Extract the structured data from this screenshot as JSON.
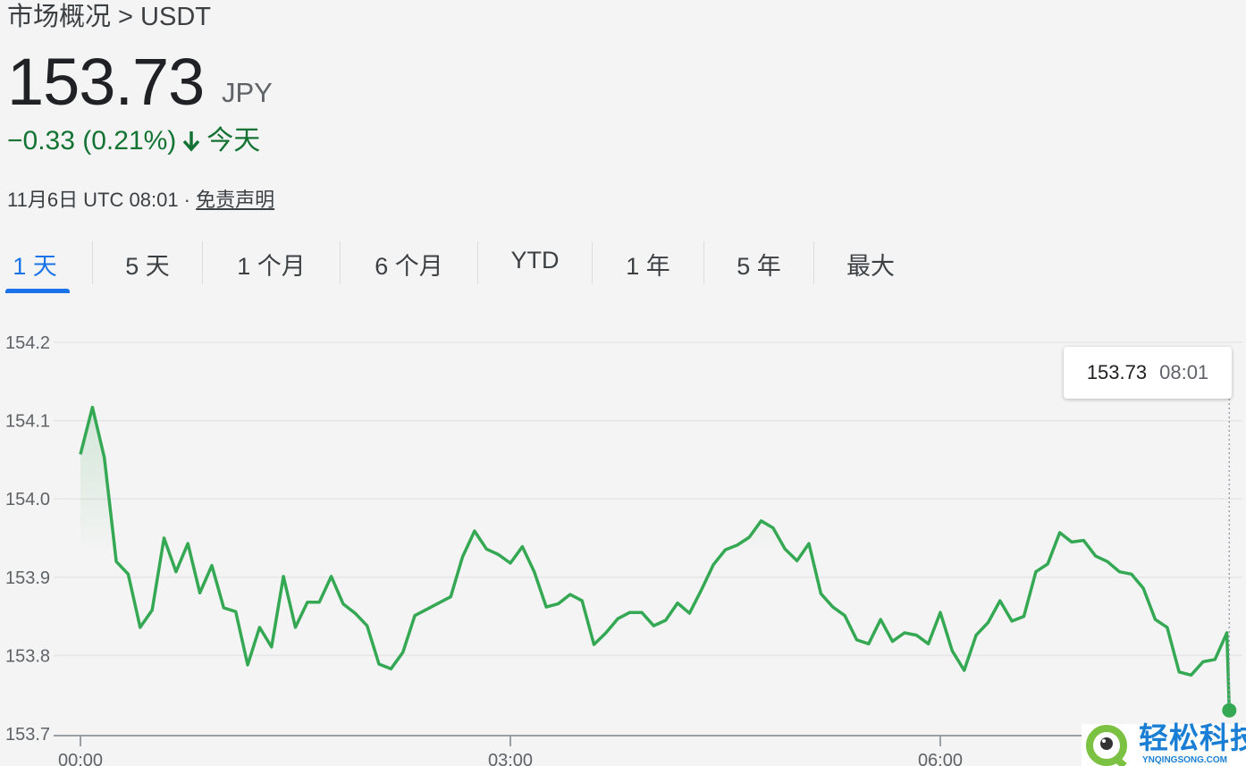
{
  "header": {
    "breadcrumb": "市场概况 > USDT",
    "price": "153.73",
    "currency": "JPY",
    "change": "−0.33 (0.21%)",
    "change_icon": "arrow-down-icon",
    "change_period": "今天",
    "timestamp": "11月6日 UTC 08:01 · ",
    "disclaimer": "免责声明"
  },
  "tabs": [
    {
      "label": "1 天",
      "active": true
    },
    {
      "label": "5 天"
    },
    {
      "label": "1 个月"
    },
    {
      "label": "6 个月"
    },
    {
      "label": "YTD"
    },
    {
      "label": "1 年"
    },
    {
      "label": "5 年"
    },
    {
      "label": "最大"
    }
  ],
  "tooltip": {
    "value": "153.73",
    "time": "08:01"
  },
  "colors": {
    "line": "#34a853",
    "accent": "#1a73e8",
    "down": "#137333"
  },
  "watermark": {
    "name": "轻松科技",
    "url": "YNQINGSONG.COM"
  },
  "chart_data": {
    "type": "line",
    "title": "",
    "xlabel": "",
    "ylabel": "",
    "ylim": [
      153.7,
      154.2
    ],
    "yticks": [
      "153.7",
      "153.8",
      "153.9",
      "154.0",
      "154.1",
      "154.2"
    ],
    "xticks": [
      "00:00",
      "03:00",
      "06:00"
    ],
    "grid": true,
    "x": [
      "00:00",
      "00:05",
      "00:10",
      "00:15",
      "00:20",
      "00:25",
      "00:30",
      "00:35",
      "00:40",
      "00:45",
      "00:50",
      "00:55",
      "01:00",
      "01:05",
      "01:10",
      "01:15",
      "01:20",
      "01:25",
      "01:30",
      "01:35",
      "01:40",
      "01:45",
      "01:50",
      "01:55",
      "02:00",
      "02:05",
      "02:10",
      "02:15",
      "02:20",
      "02:25",
      "02:30",
      "02:35",
      "02:40",
      "02:45",
      "02:50",
      "02:55",
      "03:00",
      "03:05",
      "03:10",
      "03:15",
      "03:20",
      "03:25",
      "03:30",
      "03:35",
      "03:40",
      "03:45",
      "03:50",
      "03:55",
      "04:00",
      "04:05",
      "04:10",
      "04:15",
      "04:20",
      "04:25",
      "04:30",
      "04:35",
      "04:40",
      "04:45",
      "04:50",
      "04:55",
      "05:00",
      "05:05",
      "05:10",
      "05:15",
      "05:20",
      "05:25",
      "05:30",
      "05:35",
      "05:40",
      "05:45",
      "05:50",
      "05:55",
      "06:00",
      "06:05",
      "06:10",
      "06:15",
      "06:20",
      "06:25",
      "06:30",
      "06:35",
      "06:40",
      "06:45",
      "06:50",
      "06:55",
      "07:00",
      "07:05",
      "07:10",
      "07:15",
      "07:20",
      "07:25",
      "07:30",
      "07:35",
      "07:40",
      "07:45",
      "07:50",
      "07:55",
      "08:00",
      "08:01"
    ],
    "values": [
      154.057,
      154.117,
      154.053,
      153.92,
      153.904,
      153.836,
      153.858,
      153.95,
      153.907,
      153.943,
      153.88,
      153.915,
      153.861,
      153.856,
      153.788,
      153.836,
      153.811,
      153.901,
      153.836,
      153.868,
      153.868,
      153.901,
      153.866,
      153.854,
      153.838,
      153.789,
      153.783,
      153.804,
      153.851,
      153.859,
      153.867,
      153.875,
      153.926,
      153.959,
      153.936,
      153.929,
      153.918,
      153.939,
      153.907,
      153.862,
      153.866,
      153.878,
      153.87,
      153.814,
      153.829,
      153.847,
      153.855,
      153.855,
      153.838,
      153.845,
      153.867,
      153.854,
      153.884,
      153.916,
      153.935,
      153.941,
      153.951,
      153.972,
      153.963,
      153.936,
      153.921,
      153.943,
      153.879,
      153.862,
      153.851,
      153.82,
      153.815,
      153.846,
      153.818,
      153.829,
      153.826,
      153.815,
      153.855,
      153.806,
      153.781,
      153.826,
      153.842,
      153.87,
      153.844,
      153.85,
      153.907,
      153.917,
      153.957,
      153.945,
      153.947,
      153.927,
      153.92,
      153.907,
      153.904,
      153.886,
      153.846,
      153.836,
      153.779,
      153.775,
      153.792,
      153.795,
      153.829,
      153.73
    ]
  }
}
